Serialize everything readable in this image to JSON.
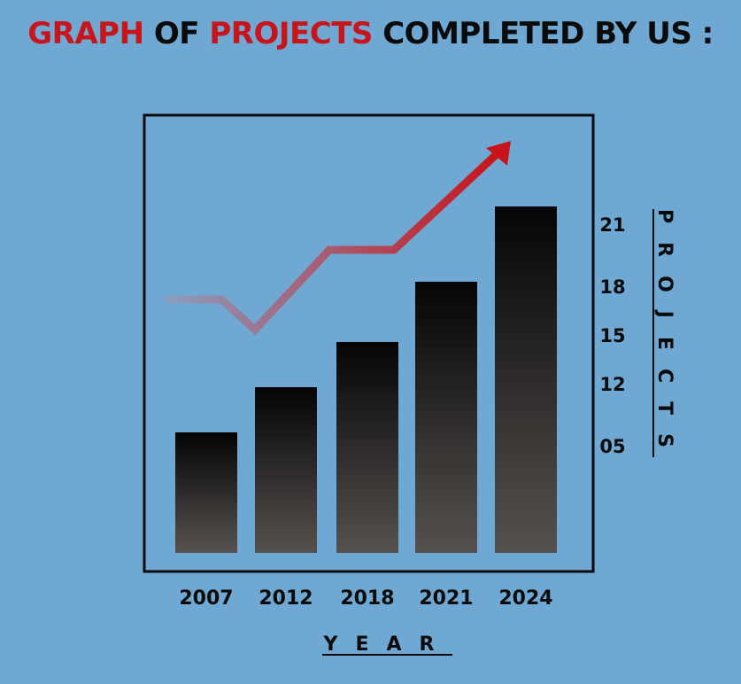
{
  "title": {
    "part1": "GRAPH",
    "part2": "OF",
    "part3": "PROJECTS",
    "part4": "COMPLETED BY US :"
  },
  "colors": {
    "background": "#6fa9d3",
    "accent_red": "#c8151b",
    "text": "#0b0b0b",
    "trend_start": "#8a9ec0",
    "trend_end": "#c8151b"
  },
  "chart_data": {
    "type": "bar",
    "title": "GRAPH OF PROJECTS COMPLETED BY US :",
    "xlabel": "YEAR",
    "ylabel": "PROJECTS",
    "categories": [
      "2007",
      "2012",
      "2018",
      "2021",
      "2024"
    ],
    "values": [
      8,
      11,
      14,
      18,
      23
    ],
    "ytick_labels": [
      "05",
      "12",
      "15",
      "18",
      "21"
    ],
    "ytick_values": [
      5,
      12,
      15,
      18,
      21
    ],
    "ylim": [
      0,
      25
    ],
    "yaxis_position": "right",
    "grid": false,
    "legend": "none",
    "trend_arrow": {
      "type": "line",
      "values": [
        17,
        17,
        15.5,
        19.5,
        19.5,
        25
      ],
      "color_from": "#8a9ec0",
      "color_to": "#c8151b"
    }
  }
}
